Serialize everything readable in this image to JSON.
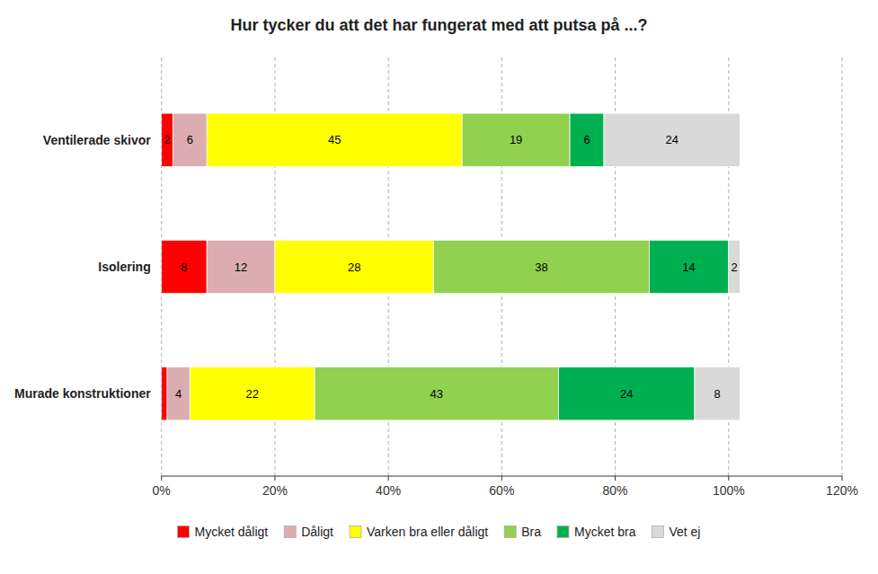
{
  "chart_data": {
    "type": "bar",
    "orientation": "horizontal",
    "stacked": true,
    "title": "Hur tycker du att det har fungerat med att putsa på ...?",
    "categories": [
      "Murade konstruktioner",
      "Isolering",
      "Ventilerade skivor"
    ],
    "series": [
      {
        "name": "Mycket dåligt",
        "color": "#FF0000",
        "values": [
          1,
          8,
          2
        ],
        "value_labels": [
          null,
          "8",
          "2"
        ]
      },
      {
        "name": "Dåligt",
        "color": "#DBADB0",
        "values": [
          4,
          12,
          6
        ]
      },
      {
        "name": "Varken bra eller dåligt",
        "color": "#FFFF00",
        "values": [
          22,
          28,
          45
        ]
      },
      {
        "name": "Bra",
        "color": "#92D050",
        "values": [
          43,
          38,
          19
        ]
      },
      {
        "name": "Mycket bra",
        "color": "#00B050",
        "values": [
          24,
          14,
          6
        ]
      },
      {
        "name": "Vet ej",
        "color": "#D9D9D9",
        "values": [
          8,
          2,
          24
        ]
      }
    ],
    "xlim": [
      0,
      120
    ],
    "xticks": [
      {
        "value": 0,
        "label": "0%"
      },
      {
        "value": 20,
        "label": "20%"
      },
      {
        "value": 40,
        "label": "40%"
      },
      {
        "value": 60,
        "label": "60%"
      },
      {
        "value": 80,
        "label": "80%"
      },
      {
        "value": 100,
        "label": "100%"
      },
      {
        "value": 120,
        "label": "120%"
      }
    ],
    "grid": true,
    "legend": "bottom",
    "data_labels": true
  }
}
